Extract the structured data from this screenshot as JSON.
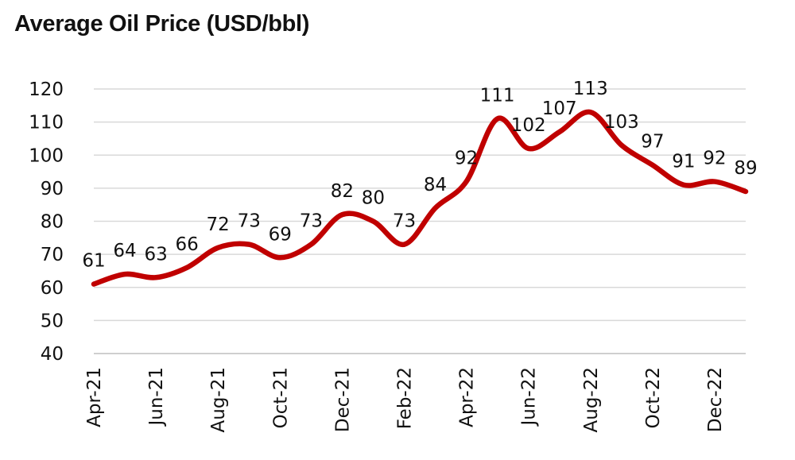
{
  "chart_data": {
    "type": "line",
    "title": "Average Oil Price (USD/bbl)",
    "xlabel": "",
    "ylabel": "",
    "ylim": [
      40,
      120
    ],
    "yticks": [
      40,
      50,
      60,
      70,
      80,
      90,
      100,
      110,
      120
    ],
    "grid": true,
    "legend": "none",
    "series_color": "#c00000",
    "x": [
      "Apr-21",
      "May-21",
      "Jun-21",
      "Jul-21",
      "Aug-21",
      "Sep-21",
      "Oct-21",
      "Nov-21",
      "Dec-21",
      "Jan-22",
      "Feb-22",
      "Mar-22",
      "Apr-22",
      "May-22",
      "Jun-22",
      "Jul-22",
      "Aug-22",
      "Sep-22",
      "Oct-22",
      "Nov-22",
      "Dec-22",
      "Jan-23"
    ],
    "xtick_labels": [
      "Apr-21",
      "Jun-21",
      "Aug-21",
      "Oct-21",
      "Dec-21",
      "Feb-22",
      "Apr-22",
      "Jun-22",
      "Aug-22",
      "Oct-22",
      "Dec-22"
    ],
    "series": [
      {
        "name": "Average Oil Price",
        "values": [
          61,
          64,
          63,
          66,
          72,
          73,
          69,
          73,
          82,
          80,
          73,
          84,
          92,
          111,
          102,
          107,
          113,
          103,
          97,
          91,
          92,
          89
        ]
      }
    ]
  }
}
